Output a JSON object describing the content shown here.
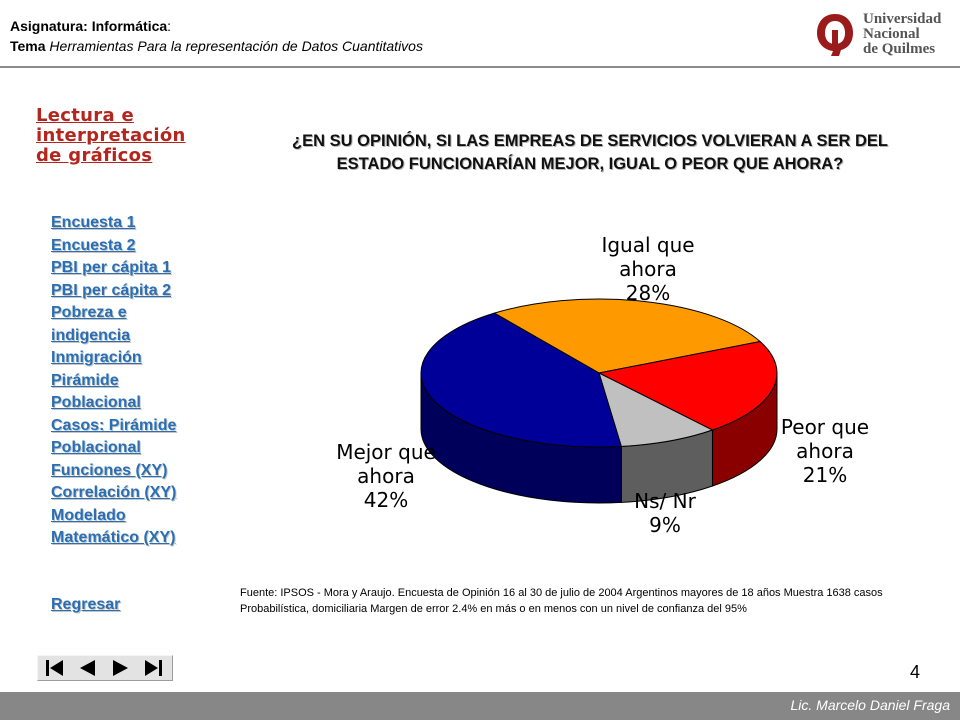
{
  "header": {
    "subject_label": "Asignatura: ",
    "subject_value": "Informática",
    "subject_suffix": ":",
    "topic_label": "Tema",
    "topic_value": " Herramientas Para la representación de Datos Cuantitativos",
    "logo_text": [
      "Universidad",
      "Nacional",
      "de Quilmes"
    ]
  },
  "sidebar": {
    "title": "Lectura e interpretación de gráficos",
    "links": [
      {
        "lines": [
          "Encuesta 1"
        ]
      },
      {
        "lines": [
          "Encuesta 2"
        ]
      },
      {
        "lines": [
          "PBI per cápita 1"
        ]
      },
      {
        "lines": [
          "PBI per cápita 2"
        ]
      },
      {
        "lines": [
          "Pobreza e",
          "indigencia"
        ]
      },
      {
        "lines": [
          "Inmigración"
        ]
      },
      {
        "lines": [
          "Pirámide",
          "Poblacional"
        ]
      },
      {
        "lines": [
          "Casos: Pirámide",
          "Poblacional"
        ]
      },
      {
        "lines": [
          "Funciones (XY)"
        ]
      },
      {
        "lines": [
          "Correlación (XY)"
        ]
      },
      {
        "lines": [
          "Modelado",
          "Matemático (XY)"
        ]
      }
    ],
    "back_label": "Regresar"
  },
  "main": {
    "question": "¿EN SU OPINIÓN, SI LAS EMPREAS DE SERVICIOS VOLVIERAN A SER DEL ESTADO FUNCIONARÍAN MEJOR, IGUAL O PEOR QUE AHORA?",
    "source": "Fuente: IPSOS - Mora y Araujo. Encuesta de Opinión 16 al 30 de  julio de 2004 Argentinos mayores de 18 años Muestra 1638 casos Probabilística, domiciliaria Margen de error 2.4% en más o en menos con un nivel de confianza del 95%"
  },
  "chart_data": {
    "type": "pie",
    "style": "3d",
    "slices": [
      {
        "label": [
          "Igual que",
          "ahora"
        ],
        "value_label": "28%",
        "value": 28,
        "color": "#ff9900",
        "side": "#b86e00"
      },
      {
        "label": [
          "Peor que",
          "ahora"
        ],
        "value_label": "21%",
        "value": 21,
        "color": "#ff0000",
        "side": "#8a0000"
      },
      {
        "label": [
          "Ns/ Nr"
        ],
        "value_label": "9%",
        "value": 9,
        "color": "#c0c0c0",
        "side": "#5e5e5e"
      },
      {
        "label": [
          "Mejor que",
          "ahora"
        ],
        "value_label": "42%",
        "value": 42,
        "color": "#000099",
        "side": "#00005a"
      }
    ]
  },
  "nav_controls": [
    "first-slide",
    "previous-slide",
    "next-slide",
    "last-slide"
  ],
  "page_number": "4",
  "footer": {
    "author": "Lic. Marcelo Daniel Fraga"
  }
}
